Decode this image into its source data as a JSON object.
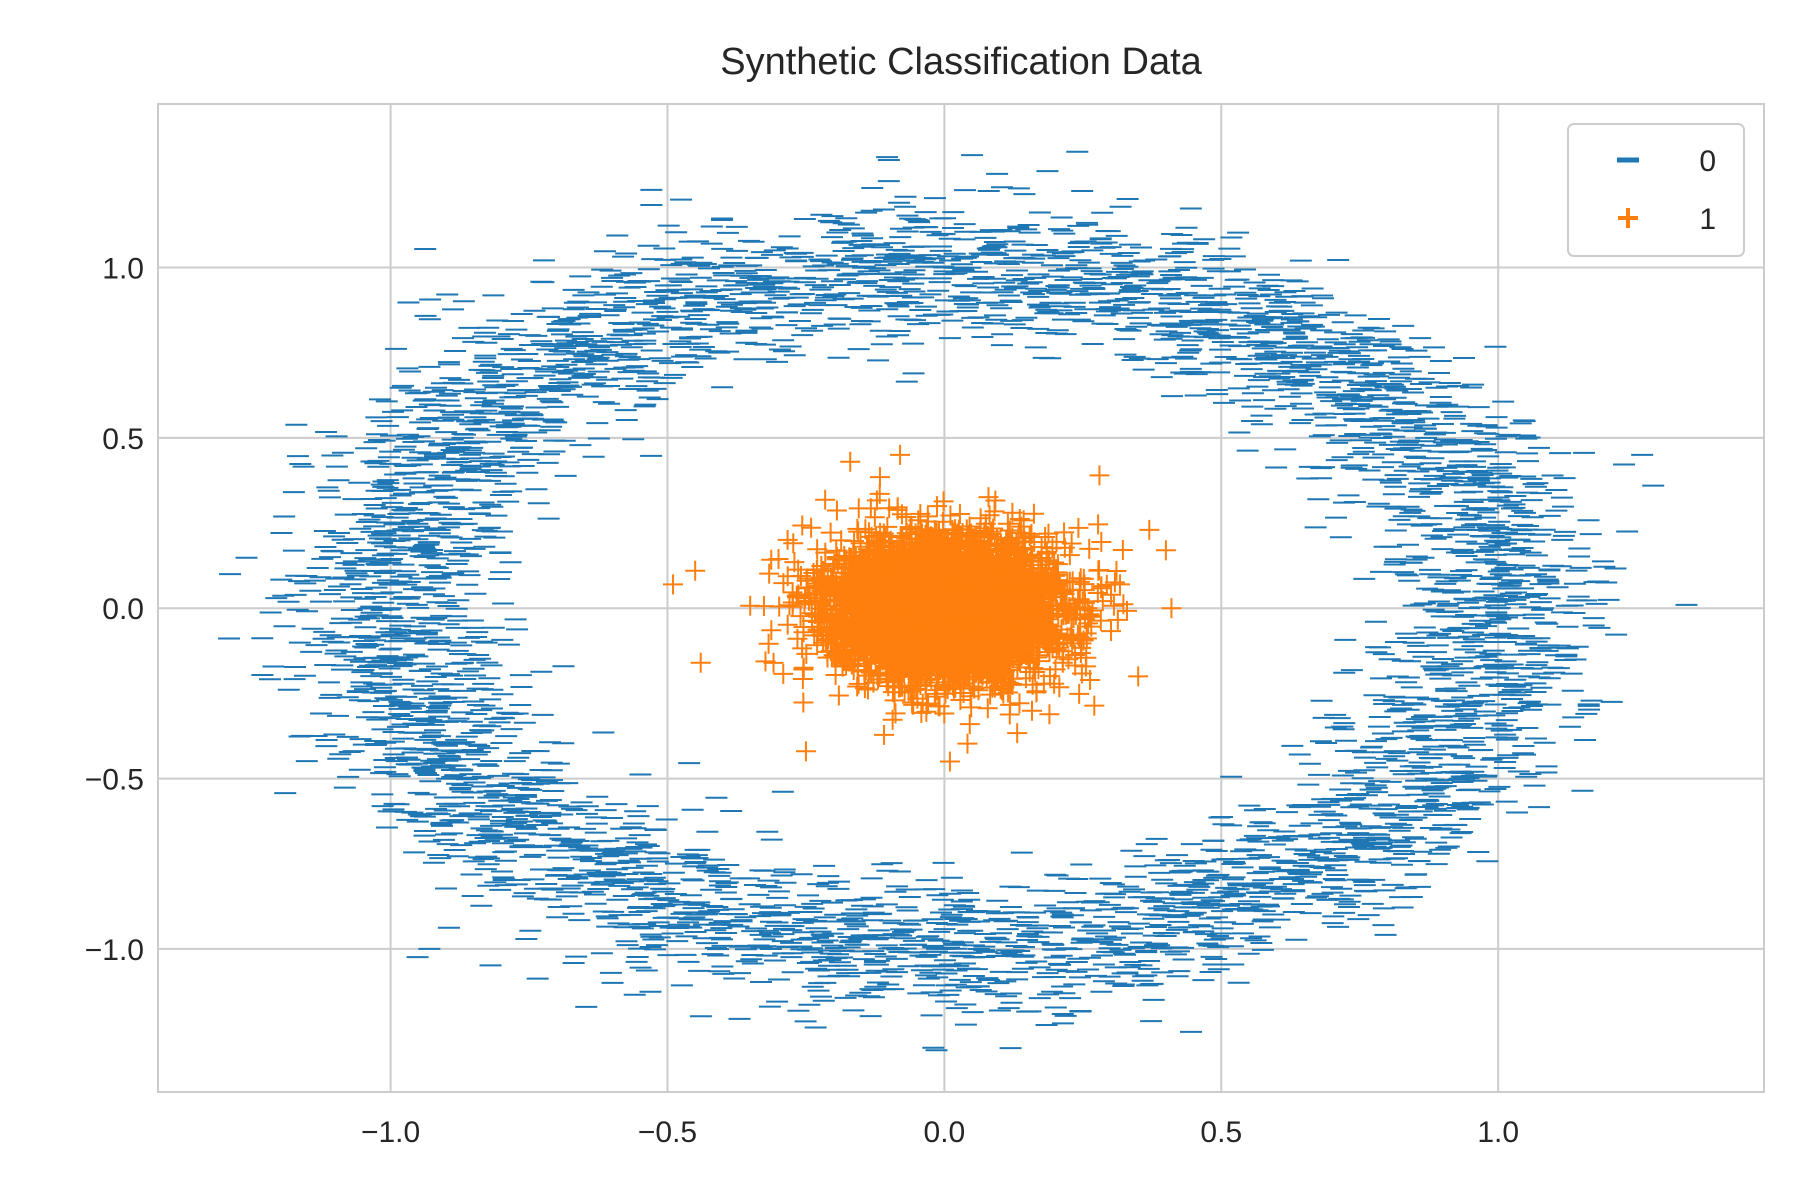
{
  "chart_data": {
    "type": "scatter",
    "title": "Synthetic Classification Data",
    "xlabel": "",
    "ylabel": "",
    "xlim": [
      -1.42,
      1.48
    ],
    "ylim": [
      -1.42,
      1.48
    ],
    "xticks": [
      -1.0,
      -0.5,
      0.0,
      0.5,
      1.0
    ],
    "yticks": [
      -1.0,
      -0.5,
      0.0,
      0.5,
      1.0
    ],
    "xtick_labels": [
      "−1.0",
      "−0.5",
      "0.0",
      "0.5",
      "1.0"
    ],
    "ytick_labels": [
      "−1.0",
      "−0.5",
      "0.0",
      "0.5",
      "1.0"
    ],
    "grid": true,
    "legend_position": "top-right",
    "series": [
      {
        "name": "0",
        "marker": "hline",
        "color": "#1f77b4",
        "points": [
          [
            1.0,
            0.0
          ],
          [
            0.98,
            0.17
          ],
          [
            0.94,
            0.34
          ],
          [
            0.87,
            0.5
          ],
          [
            0.77,
            0.64
          ],
          [
            0.64,
            0.77
          ],
          [
            0.5,
            0.87
          ],
          [
            0.34,
            0.94
          ],
          [
            0.17,
            0.98
          ],
          [
            0.0,
            1.0
          ],
          [
            -0.17,
            0.98
          ],
          [
            -0.34,
            0.94
          ],
          [
            -0.5,
            0.87
          ],
          [
            -0.64,
            0.77
          ],
          [
            -0.77,
            0.64
          ],
          [
            -0.87,
            0.5
          ],
          [
            -0.94,
            0.34
          ],
          [
            -0.98,
            0.17
          ],
          [
            -1.0,
            0.0
          ],
          [
            -0.98,
            -0.17
          ],
          [
            -0.94,
            -0.34
          ],
          [
            -0.87,
            -0.5
          ],
          [
            -0.77,
            -0.64
          ],
          [
            -0.64,
            -0.77
          ],
          [
            -0.5,
            -0.87
          ],
          [
            -0.34,
            -0.94
          ],
          [
            -0.17,
            -0.98
          ],
          [
            0.0,
            -1.0
          ],
          [
            0.17,
            -0.98
          ],
          [
            0.34,
            -0.94
          ],
          [
            0.5,
            -0.87
          ],
          [
            0.64,
            -0.77
          ],
          [
            0.77,
            -0.64
          ],
          [
            0.87,
            -0.5
          ],
          [
            0.94,
            -0.34
          ],
          [
            0.98,
            -0.17
          ],
          [
            -1.29,
            0.1
          ],
          [
            1.34,
            0.01
          ],
          [
            1.28,
            0.36
          ],
          [
            0.24,
            1.34
          ],
          [
            -0.02,
            -1.29
          ],
          [
            -0.93,
            -1.0
          ],
          [
            1.26,
            0.45
          ],
          [
            0.05,
            1.33
          ]
        ],
        "distribution": {
          "shape": "ring",
          "center": [
            0.0,
            0.0
          ],
          "radius": 1.0,
          "noise_sd": 0.1,
          "count": 5000
        }
      },
      {
        "name": "1",
        "marker": "plus",
        "color": "#ff7f0e",
        "points": [
          [
            0.0,
            0.0
          ],
          [
            0.1,
            0.1
          ],
          [
            -0.1,
            -0.1
          ],
          [
            0.2,
            0.05
          ],
          [
            -0.2,
            0.02
          ],
          [
            -0.49,
            0.07
          ],
          [
            -0.45,
            0.11
          ],
          [
            0.4,
            0.17
          ],
          [
            0.41,
            0.0
          ],
          [
            -0.25,
            -0.42
          ],
          [
            -0.17,
            0.43
          ],
          [
            -0.08,
            0.45
          ],
          [
            0.01,
            -0.45
          ],
          [
            0.37,
            0.23
          ],
          [
            -0.44,
            -0.16
          ],
          [
            0.28,
            0.39
          ],
          [
            0.35,
            -0.2
          ]
        ],
        "distribution": {
          "shape": "gaussian",
          "center": [
            0.0,
            0.0
          ],
          "sd": 0.1,
          "count": 5000
        }
      }
    ]
  }
}
